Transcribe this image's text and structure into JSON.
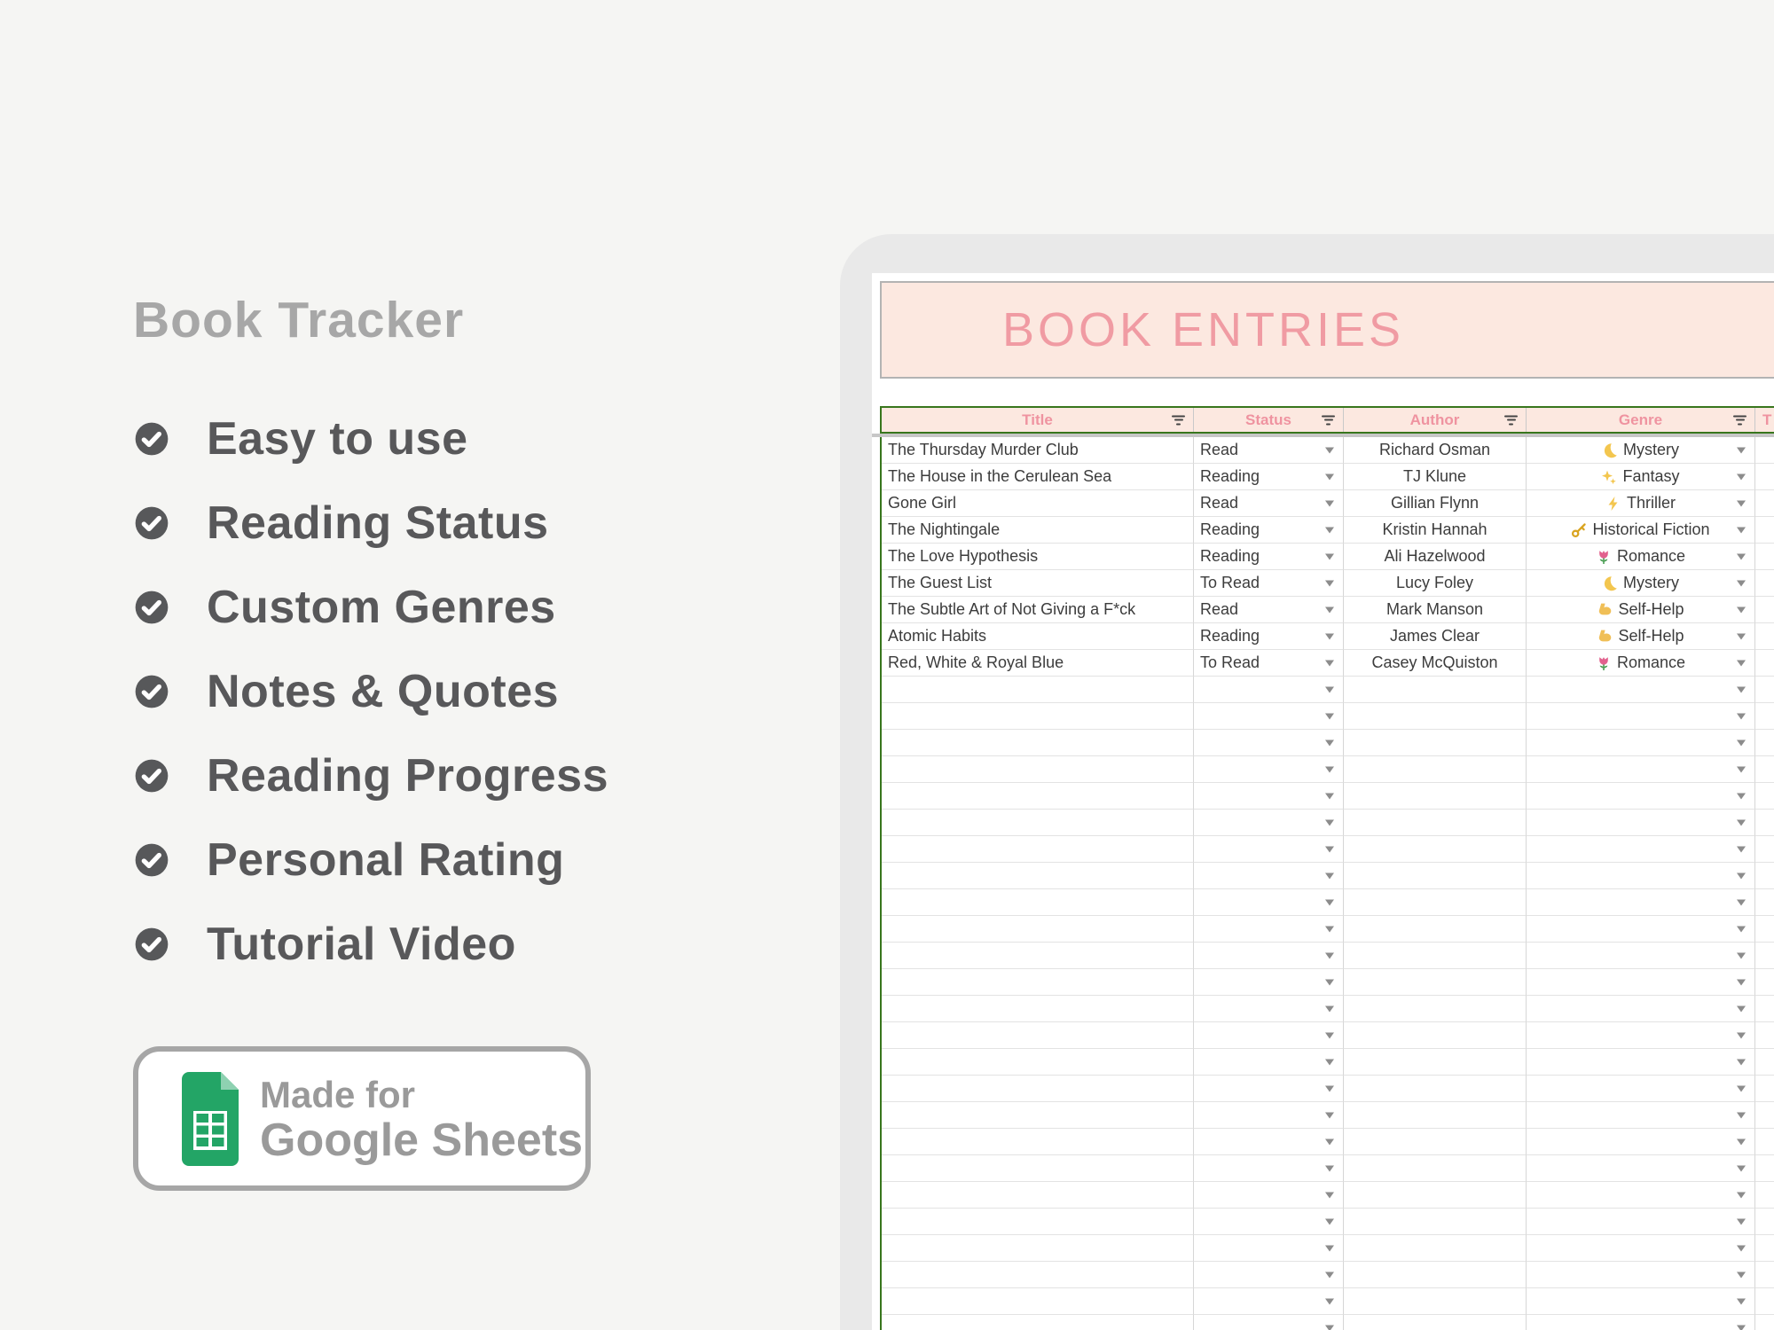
{
  "left_panel": {
    "title": "Book Tracker",
    "features": [
      "Easy to use",
      "Reading Status",
      "Custom Genres",
      "Notes & Quotes",
      "Reading Progress",
      "Personal Rating",
      "Tutorial Video"
    ],
    "badge": {
      "line1": "Made for",
      "line2": "Google Sheets",
      "icon": "google-sheets-icon"
    }
  },
  "sheet": {
    "banner_title": "BOOK ENTRIES",
    "columns": [
      {
        "label": "Title",
        "has_filter": true,
        "partial": false
      },
      {
        "label": "Status",
        "has_filter": true,
        "partial": false
      },
      {
        "label": "Author",
        "has_filter": true,
        "partial": false
      },
      {
        "label": "Genre",
        "has_filter": true,
        "partial": false
      },
      {
        "label": "T",
        "has_filter": false,
        "partial": true
      }
    ],
    "books": [
      {
        "title": "The Thursday Murder Club",
        "status": "Read",
        "author": "Richard Osman",
        "genre_icon": "moon-icon",
        "genre": "Mystery"
      },
      {
        "title": "The House in the Cerulean Sea",
        "status": "Reading",
        "author": "TJ Klune",
        "genre_icon": "sparkles-icon",
        "genre": "Fantasy"
      },
      {
        "title": "Gone Girl",
        "status": "Read",
        "author": "Gillian Flynn",
        "genre_icon": "lightning-icon",
        "genre": "Thriller"
      },
      {
        "title": "The Nightingale",
        "status": "Reading",
        "author": "Kristin Hannah",
        "genre_icon": "key-icon",
        "genre": "Historical Fiction"
      },
      {
        "title": "The Love Hypothesis",
        "status": "Reading",
        "author": "Ali Hazelwood",
        "genre_icon": "tulip-icon",
        "genre": "Romance"
      },
      {
        "title": "The Guest List",
        "status": "To Read",
        "author": "Lucy Foley",
        "genre_icon": "moon-icon",
        "genre": "Mystery"
      },
      {
        "title": "The Subtle Art of Not Giving a F*ck",
        "status": "Read",
        "author": "Mark Manson",
        "genre_icon": "biceps-icon",
        "genre": "Self-Help"
      },
      {
        "title": "Atomic Habits",
        "status": "Reading",
        "author": "James Clear",
        "genre_icon": "biceps-icon",
        "genre": "Self-Help"
      },
      {
        "title": "Red, White & Royal Blue",
        "status": "To Read",
        "author": "Casey McQuiston",
        "genre_icon": "tulip-icon",
        "genre": "Romance"
      }
    ],
    "empty_row_count": 25,
    "colors": {
      "banner_bg": "#fce8e0",
      "banner_text": "#f09ba3",
      "header_text": "#ef93a0",
      "table_border_green": "#38761d",
      "sheets_green": "#23a566"
    }
  }
}
